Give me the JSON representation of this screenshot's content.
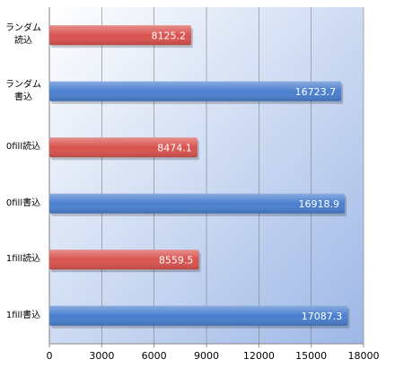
{
  "chart_data": {
    "type": "bar",
    "orientation": "horizontal",
    "categories": [
      "ランダム読込",
      "ランダム書込",
      "0fill読込",
      "0fill書込",
      "1fill読込",
      "1fill書込"
    ],
    "values": [
      8125.2,
      16723.7,
      8474.1,
      16918.9,
      8559.5,
      17087.3
    ],
    "colors": [
      "#d9534f",
      "#4a7fcf",
      "#d9534f",
      "#4a7fcf",
      "#d9534f",
      "#4a7fcf"
    ],
    "xlim": [
      0,
      18000
    ],
    "xticks": [
      0,
      3000,
      6000,
      9000,
      12000,
      15000,
      18000
    ],
    "grid": true
  }
}
